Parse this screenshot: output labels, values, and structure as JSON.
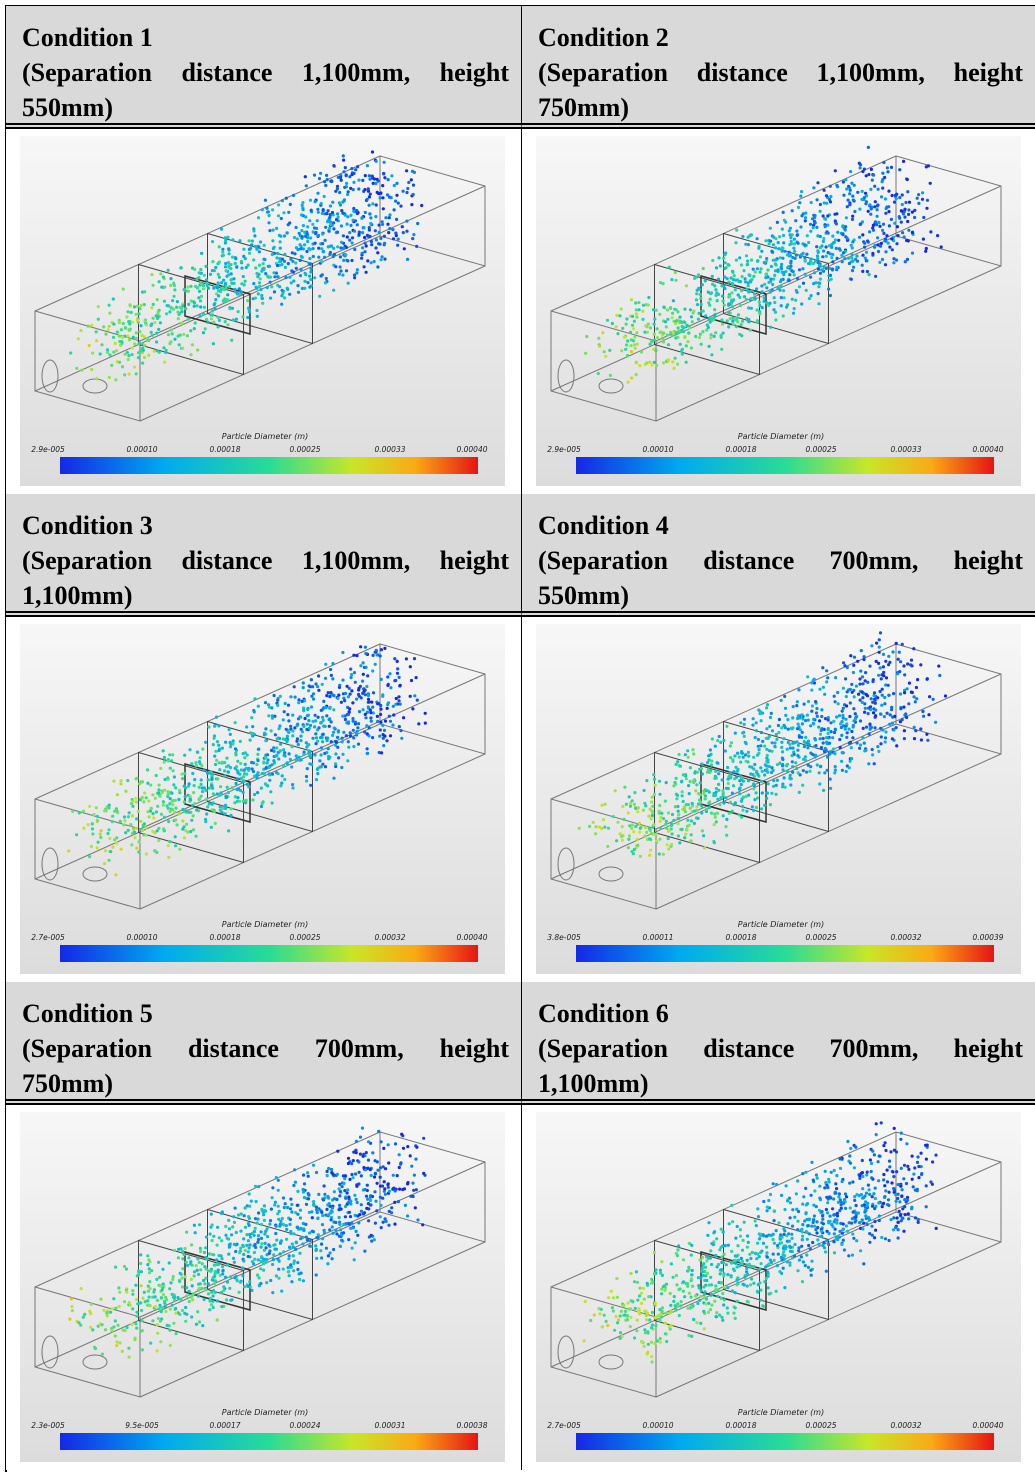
{
  "conditions": [
    {
      "title": "Condition 1",
      "description": "(Separation distance 1,100mm, height 550mm)",
      "colorbar_title": "Particle Diameter (m)",
      "colorbar_labels": [
        "2.9e-005",
        "0.00010",
        "0.00018",
        "0.00025",
        "0.00033",
        "0.00040"
      ]
    },
    {
      "title": "Condition 2",
      "description": "(Separation distance 1,100mm, height 750mm)",
      "colorbar_title": "Particle Diameter (m)",
      "colorbar_labels": [
        "2.9e-005",
        "0.00010",
        "0.00018",
        "0.00025",
        "0.00033",
        "0.00040"
      ]
    },
    {
      "title": "Condition 3",
      "description": "(Separation distance 1,100mm, height 1,100mm)",
      "colorbar_title": "Particle Diameter (m)",
      "colorbar_labels": [
        "2.7e-005",
        "0.00010",
        "0.00018",
        "0.00025",
        "0.00032",
        "0.00040"
      ]
    },
    {
      "title": "Condition 4",
      "description": "(Separation distance 700mm, height 550mm)",
      "colorbar_title": "Particle Diameter (m)",
      "colorbar_labels": [
        "3.8e-005",
        "0.00011",
        "0.00018",
        "0.00025",
        "0.00032",
        "0.00039"
      ]
    },
    {
      "title": "Condition 5",
      "description": "(Separation distance 700mm, height 750mm)",
      "colorbar_title": "Particle Diameter (m)",
      "colorbar_labels": [
        "2.3e-005",
        "9.5e-005",
        "0.00017",
        "0.00024",
        "0.00031",
        "0.00038"
      ]
    },
    {
      "title": "Condition 6",
      "description": "(Separation distance 700mm, height 1,100mm)",
      "colorbar_title": "Particle Diameter (m)",
      "colorbar_labels": [
        "2.7e-005",
        "0.00010",
        "0.00018",
        "0.00025",
        "0.00032",
        "0.00040"
      ]
    }
  ]
}
